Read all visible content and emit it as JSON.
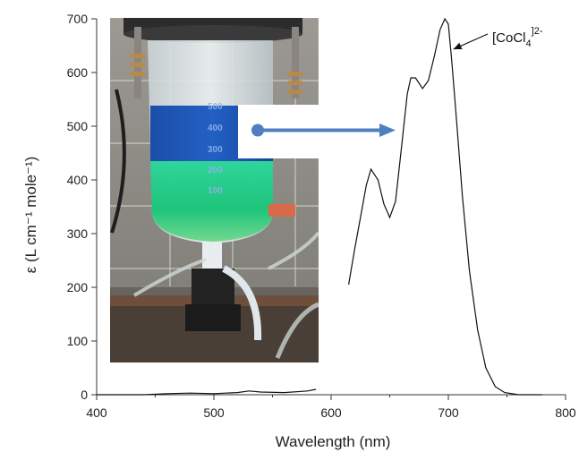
{
  "chart_data": {
    "type": "line",
    "title": "",
    "xlabel": "Wavelength (nm)",
    "ylabel": "ε (L cm⁻¹ mole⁻¹)",
    "xlim": [
      400,
      800
    ],
    "ylim": [
      0,
      700
    ],
    "x_ticks": [
      400,
      500,
      600,
      700,
      800
    ],
    "y_ticks": [
      0,
      100,
      200,
      300,
      400,
      500,
      600,
      700
    ],
    "grid": false,
    "annotation": {
      "species": "[CoCl",
      "subscript": "4",
      "superscript": "]2-",
      "x": 702,
      "y": 640
    },
    "series": [
      {
        "x": [
          400,
          420,
          440,
          460,
          480,
          500,
          520,
          530,
          540,
          560,
          580,
          587
        ],
        "y": [
          0,
          0,
          0,
          2,
          3,
          2,
          4,
          7,
          5,
          4,
          7,
          10
        ]
      },
      {
        "x": [
          615,
          620,
          625,
          630,
          634,
          640,
          645,
          650,
          655,
          660,
          665,
          668,
          672,
          678,
          683,
          688,
          693,
          697,
          700,
          703,
          707,
          712,
          718,
          725,
          732,
          740,
          748,
          760,
          780
        ],
        "y": [
          205,
          270,
          330,
          390,
          420,
          400,
          355,
          330,
          360,
          460,
          560,
          590,
          590,
          570,
          585,
          630,
          680,
          700,
          690,
          620,
          510,
          370,
          230,
          120,
          50,
          15,
          4,
          0,
          0
        ]
      }
    ]
  },
  "photo": {
    "beaker_scale": [
      "500",
      "400",
      "300",
      "200",
      "100"
    ]
  }
}
